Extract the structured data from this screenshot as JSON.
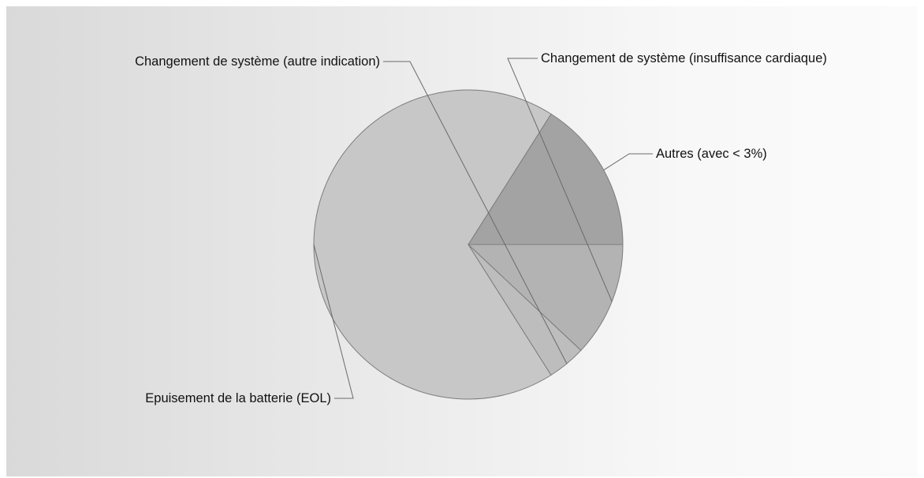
{
  "chart_data": {
    "type": "pie",
    "title": "",
    "slices": [
      {
        "label": "Autres (avec < 3%)",
        "value": 16,
        "color": "#a3a3a3"
      },
      {
        "label": "Epuisement de la batterie (EOL)",
        "value": 68,
        "color": "#c7c7c7"
      },
      {
        "label": "Changement de système (autre indication)",
        "value": 4,
        "color": "#bdbdbd"
      },
      {
        "label": "Changement de système (insuffisance cardiaque)",
        "value": 12,
        "color": "#b3b3b3"
      }
    ],
    "legend": "none",
    "labels": "outside with leader lines"
  }
}
